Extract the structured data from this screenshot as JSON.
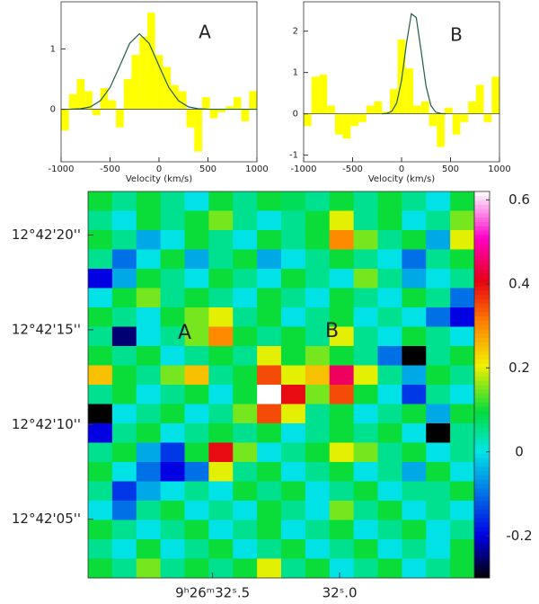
{
  "chart_data": [
    {
      "type": "histogram",
      "label": "A",
      "xlabel": "Velocity (km/s)",
      "bins": [
        -1000,
        -920,
        -840,
        -760,
        -680,
        -600,
        -520,
        -440,
        -360,
        -280,
        -200,
        -120,
        -40,
        40,
        120,
        200,
        280,
        360,
        440,
        520,
        600,
        680,
        760,
        840,
        920,
        1000
      ],
      "values": [
        -0.35,
        0.25,
        0.5,
        0.3,
        -0.1,
        0.35,
        0.15,
        -0.3,
        0.5,
        0.9,
        1.2,
        1.6,
        0.9,
        0.7,
        0.4,
        0.3,
        -0.3,
        -0.7,
        0.2,
        -0.15,
        -0.05,
        0.05,
        0.2,
        -0.2,
        0.3
      ],
      "color": "#ffff00",
      "fit": {
        "x": [
          -1000,
          -900,
          -800,
          -700,
          -600,
          -500,
          -400,
          -300,
          -200,
          -100,
          0,
          100,
          200,
          300,
          400,
          500,
          600,
          700,
          800,
          900,
          1000
        ],
        "values": [
          0,
          0.001,
          0.008,
          0.04,
          0.14,
          0.36,
          0.72,
          1.09,
          1.25,
          1.09,
          0.72,
          0.36,
          0.14,
          0.04,
          0.008,
          0.001,
          0,
          0,
          0,
          0,
          0
        ],
        "color": "#1f5f3f"
      },
      "xlim": [
        -1000,
        1000
      ],
      "xticks": [
        -1000,
        -500,
        0,
        500,
        1000
      ],
      "ylim": [
        -0.87,
        1.78
      ],
      "yticks": [
        0,
        1
      ]
    },
    {
      "type": "histogram",
      "label": "B",
      "xlabel": "Velocity (km/s)",
      "bins": [
        -1000,
        -920,
        -840,
        -760,
        -680,
        -600,
        -520,
        -440,
        -360,
        -280,
        -200,
        -120,
        -40,
        40,
        120,
        200,
        280,
        360,
        440,
        520,
        600,
        680,
        760,
        840,
        920,
        1000
      ],
      "values": [
        -0.3,
        0.9,
        0.95,
        0.2,
        -0.5,
        -0.6,
        -0.3,
        -0.2,
        0.2,
        0.3,
        0.05,
        0.6,
        1.8,
        1.1,
        0.2,
        0.3,
        -0.3,
        -0.8,
        0.15,
        -0.5,
        -0.2,
        0.3,
        0.7,
        -0.2,
        0.9
      ],
      "color": "#ffff00",
      "fit": {
        "x": [
          -200,
          -150,
          -100,
          -50,
          0,
          50,
          100,
          150,
          200,
          250,
          300,
          350,
          400,
          450
        ],
        "values": [
          0,
          0.01,
          0.06,
          0.26,
          0.81,
          1.7,
          2.42,
          2.33,
          1.52,
          0.67,
          0.2,
          0.04,
          0.01,
          0
        ],
        "color": "#1f5f3f"
      },
      "xlim": [
        -1000,
        1000
      ],
      "xticks": [
        -1000,
        -500,
        0,
        500,
        1000
      ],
      "ylim": [
        -1.16,
        2.71
      ],
      "yticks": [
        -1,
        0,
        1,
        2
      ]
    },
    {
      "type": "heatmap",
      "annotations": [
        {
          "text": "A",
          "x": 32.61,
          "y": 14.8
        },
        {
          "text": "B",
          "x": 32.03,
          "y": 14.9
        }
      ],
      "xlim": [
        32.99,
        31.47
      ],
      "xticks": [
        {
          "value": 32.5,
          "label": "9ʰ26ᵐ32ˢ.5"
        },
        {
          "value": 32.0,
          "label": "32ˢ.0"
        }
      ],
      "ylim": [
        1.9,
        22.3
      ],
      "yticks": [
        {
          "value": 20,
          "label": "12°42'20''"
        },
        {
          "value": 15,
          "label": "12°42'15''"
        },
        {
          "value": 10,
          "label": "12°42'10''"
        },
        {
          "value": 5,
          "label": "12°42'05''"
        }
      ],
      "zlim": [
        -0.3,
        0.62
      ],
      "zticks": [
        -0.2,
        0,
        0.2,
        0.4,
        0.6
      ],
      "z": [
        [
          0.1,
          0.05,
          0.1,
          0.05,
          0,
          0.1,
          0.05,
          0.1,
          0.08,
          0.05,
          0.1,
          0.05,
          0.1,
          0.05,
          0,
          0.1
        ],
        [
          0.05,
          0,
          0.1,
          0.05,
          0.1,
          0.15,
          0.05,
          0,
          0.05,
          0.1,
          0.2,
          0.05,
          0.1,
          0,
          0.05,
          0.15
        ],
        [
          0.1,
          0.05,
          -0.05,
          0,
          0.1,
          0.05,
          0,
          0.1,
          0.05,
          0.1,
          0.3,
          0.15,
          0.05,
          0.1,
          -0.05,
          0.2
        ],
        [
          0.05,
          -0.1,
          0,
          0.1,
          -0.05,
          0.05,
          0.1,
          -0.05,
          0,
          0.05,
          0.1,
          0.05,
          0,
          -0.1,
          0.05,
          0.1
        ],
        [
          -0.2,
          -0.05,
          0.1,
          0.05,
          0,
          0.1,
          0.05,
          0,
          0.1,
          0.05,
          0,
          0.15,
          0.05,
          -0.05,
          0,
          0.05
        ],
        [
          0,
          0.1,
          0.15,
          0.05,
          0.1,
          0.05,
          0,
          0.1,
          0.05,
          0,
          0.1,
          0.05,
          0,
          0.1,
          0.05,
          -0.1
        ],
        [
          0.1,
          0.05,
          0,
          0.1,
          0.15,
          0.2,
          0.05,
          0.1,
          0,
          0.05,
          0.1,
          0,
          0.05,
          0,
          -0.1,
          -0.2
        ],
        [
          0.05,
          -0.25,
          0,
          0.05,
          0.15,
          0.3,
          0.1,
          0.05,
          0.1,
          0.05,
          0.2,
          0.05,
          0,
          0.1,
          0.05,
          0
        ],
        [
          0.1,
          0.05,
          0.1,
          0,
          0.05,
          0.1,
          0.05,
          0.2,
          0.1,
          0.15,
          0.1,
          0.05,
          -0.1,
          -0.3,
          0.05,
          0.1
        ],
        [
          0.25,
          0.1,
          0.05,
          0.15,
          0.25,
          0.05,
          0.1,
          0.35,
          0.2,
          0.25,
          0.45,
          0.2,
          0.05,
          -0.05,
          0.1,
          0.05
        ],
        [
          0.05,
          0.1,
          0,
          0.05,
          0.1,
          0,
          0.1,
          0.62,
          0.4,
          0.15,
          0.35,
          0.1,
          0,
          -0.15,
          0.05,
          0
        ],
        [
          -0.3,
          0,
          0.05,
          0.1,
          0,
          0.05,
          0.15,
          0.35,
          0.2,
          0.05,
          0.1,
          0,
          0.05,
          0.1,
          -0.05,
          0.1
        ],
        [
          -0.2,
          0.05,
          0.1,
          0,
          0.05,
          0.1,
          0.05,
          0.1,
          0,
          0.05,
          0.1,
          0.05,
          0.1,
          0,
          -0.3,
          0.05
        ],
        [
          0.05,
          0.1,
          -0.05,
          -0.15,
          0.1,
          0.4,
          0.15,
          0,
          0.05,
          0.1,
          0.2,
          0.15,
          0.05,
          0.1,
          0,
          0.05
        ],
        [
          0.1,
          0,
          -0.1,
          -0.2,
          -0.1,
          0.2,
          0.05,
          0.1,
          0,
          0.05,
          0.1,
          0,
          0.05,
          -0.05,
          0.1,
          0
        ],
        [
          0.05,
          -0.15,
          -0.05,
          0,
          0.05,
          0,
          0.1,
          0.05,
          0.1,
          0,
          0.05,
          0.1,
          0,
          0.05,
          0.05,
          0.1
        ],
        [
          0,
          -0.1,
          0.05,
          0.1,
          0,
          0.05,
          0,
          0.1,
          0.05,
          0,
          0.15,
          0.05,
          0.1,
          0,
          0.05,
          0
        ],
        [
          0.1,
          0.05,
          0,
          0.05,
          0.1,
          0,
          0.05,
          0.1,
          0,
          0.05,
          0.1,
          0,
          0.05,
          0.1,
          0,
          0.05
        ],
        [
          0.05,
          0,
          0.1,
          0,
          0.05,
          0.1,
          0,
          0.05,
          0.1,
          0,
          0.05,
          0.1,
          0,
          0.05,
          0,
          0.1
        ],
        [
          0.1,
          0.05,
          0.15,
          0.05,
          0.1,
          0.05,
          0.1,
          0.2,
          0.05,
          0.1,
          0,
          0.05,
          0.1,
          0,
          0.05,
          0.1
        ]
      ]
    }
  ]
}
